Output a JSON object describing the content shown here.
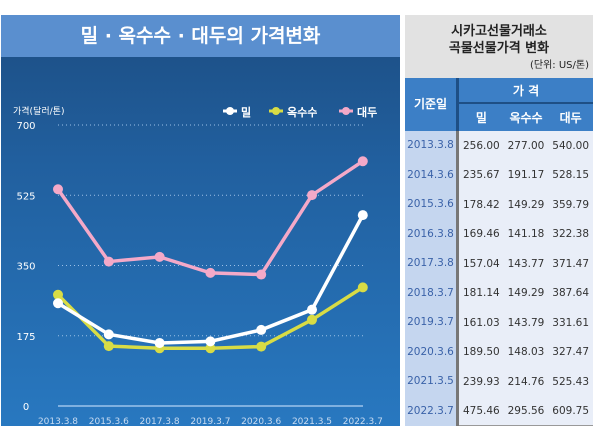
{
  "chart_data": {
    "type": "line",
    "title": "밀 · 옥수수 · 대두의 가격변화",
    "ylabel": "가격(달러/톤)",
    "ylim": [
      0,
      700
    ],
    "yticks": [
      0,
      175,
      350,
      525,
      700
    ],
    "categories": [
      "2013.3.8",
      "2015.3.6",
      "2017.3.8",
      "2019.3.7",
      "2020.3.6",
      "2021.3.5",
      "2022.3.7"
    ],
    "legend_position": "top-right",
    "grid": true,
    "series": [
      {
        "name": "밀",
        "color": "#ffffff",
        "values": [
          256.0,
          178.42,
          157.04,
          161.03,
          189.5,
          239.93,
          475.46
        ]
      },
      {
        "name": "옥수수",
        "color": "#d8dc45",
        "values": [
          277.0,
          149.29,
          143.77,
          143.79,
          148.03,
          214.76,
          295.56
        ]
      },
      {
        "name": "대두",
        "color": "#f4a9c8",
        "values": [
          540.0,
          359.79,
          371.47,
          331.61,
          327.47,
          525.43,
          609.75
        ]
      }
    ]
  },
  "table": {
    "title1": "시카고선물거래소",
    "title2": "곡물선물가격 변화",
    "unit": "(단위: US/톤)",
    "date_header": "기준일",
    "price_header": "가 격",
    "cols": [
      "밀",
      "옥수수",
      "대두"
    ],
    "rows": [
      [
        "2013.3.8",
        "256.00",
        "277.00",
        "540.00"
      ],
      [
        "2014.3.6",
        "235.67",
        "191.17",
        "528.15"
      ],
      [
        "2015.3.6",
        "178.42",
        "149.29",
        "359.79"
      ],
      [
        "2016.3.8",
        "169.46",
        "141.18",
        "322.38"
      ],
      [
        "2017.3.8",
        "157.04",
        "143.77",
        "371.47"
      ],
      [
        "2018.3.7",
        "181.14",
        "149.29",
        "387.64"
      ],
      [
        "2019.3.7",
        "161.03",
        "143.79",
        "331.61"
      ],
      [
        "2020.3.6",
        "189.50",
        "148.03",
        "327.47"
      ],
      [
        "2021.3.5",
        "239.93",
        "214.76",
        "525.43"
      ],
      [
        "2022.3.7",
        "475.46",
        "295.56",
        "609.75"
      ]
    ]
  }
}
